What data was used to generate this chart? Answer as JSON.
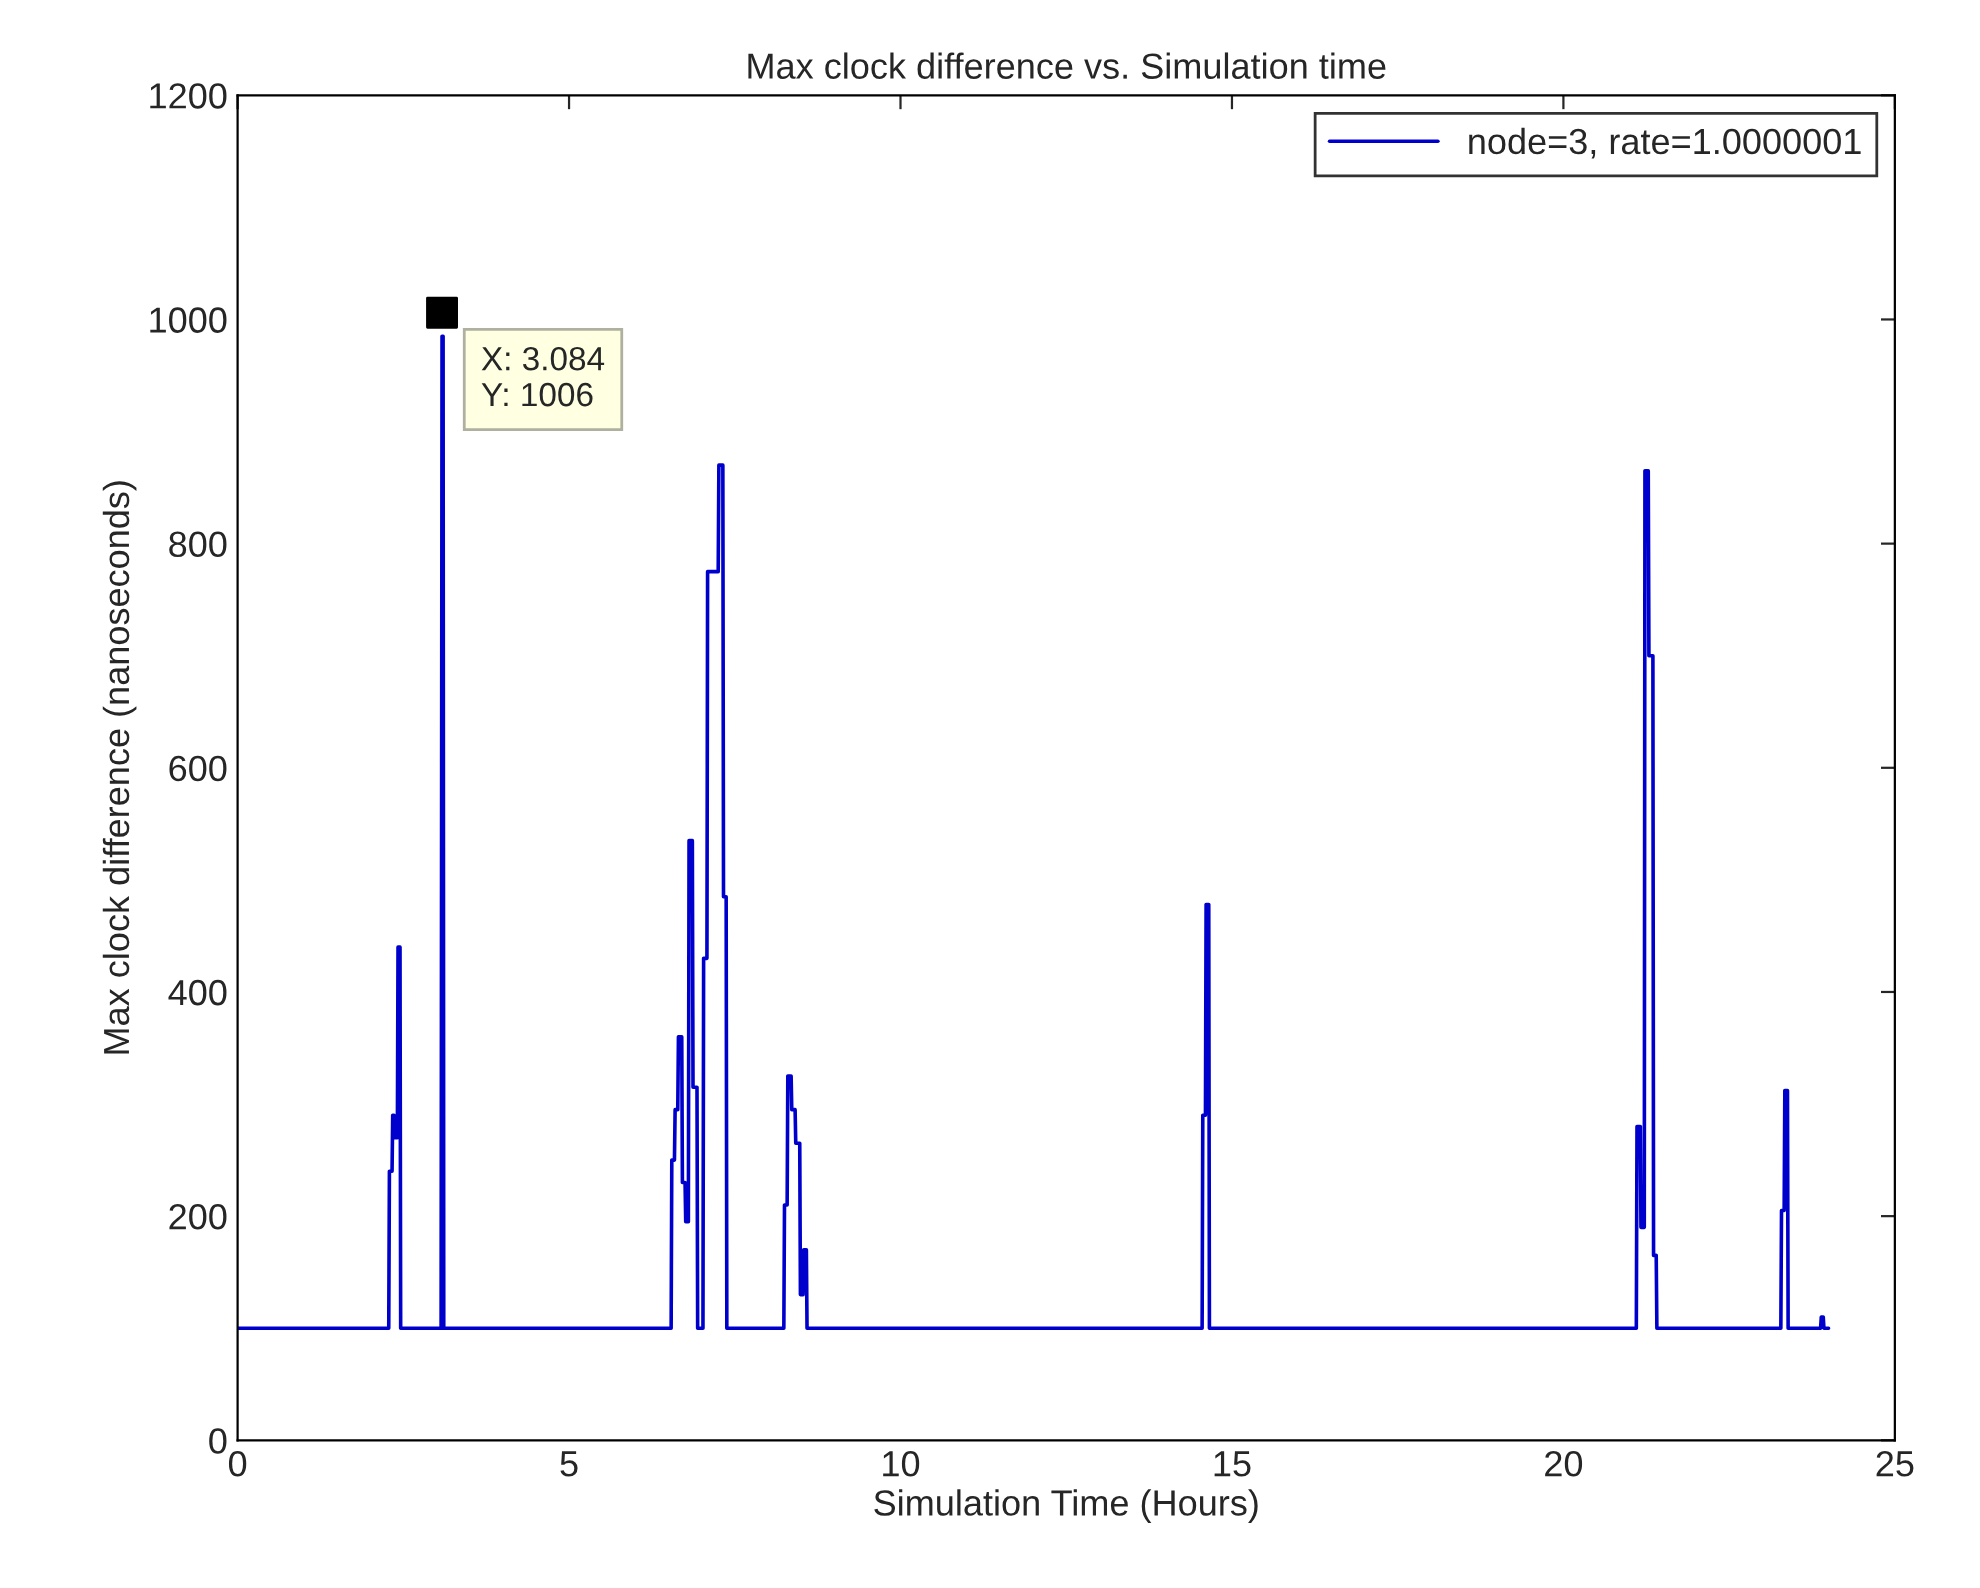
{
  "chart_data": {
    "type": "line",
    "title": "Max clock difference vs. Simulation time",
    "xlabel": "Simulation Time (Hours)",
    "ylabel": "Max clock difference (nanoseconds)",
    "xlim": [
      0,
      25
    ],
    "ylim": [
      0,
      1200
    ],
    "xticks": [
      0,
      5,
      10,
      15,
      20,
      25
    ],
    "yticks": [
      0,
      200,
      400,
      600,
      800,
      1000,
      1200
    ],
    "grid": false,
    "legend": "top right",
    "marker": "none",
    "line_style": "solid",
    "series": [
      {
        "name": "node=3, rate=1.0000001",
        "color": "#0000cc",
        "x": [
          0,
          2.28,
          2.29,
          2.33,
          2.34,
          2.36,
          2.37,
          2.41,
          2.42,
          2.45,
          2.46,
          3.07,
          3.084,
          3.1,
          3.11,
          6.54,
          6.55,
          6.59,
          6.6,
          6.64,
          6.65,
          6.7,
          6.71,
          6.75,
          6.76,
          6.8,
          6.81,
          6.86,
          6.87,
          6.93,
          6.94,
          7.02,
          7.03,
          7.08,
          7.09,
          7.25,
          7.26,
          7.32,
          7.33,
          7.37,
          7.38,
          8.24,
          8.25,
          8.29,
          8.3,
          8.35,
          8.36,
          8.41,
          8.42,
          8.48,
          8.49,
          8.53,
          8.54,
          8.58,
          8.59,
          14.55,
          14.56,
          14.6,
          14.61,
          14.65,
          14.66,
          21.1,
          21.11,
          21.16,
          21.17,
          21.22,
          21.23,
          21.28,
          21.29,
          21.35,
          21.36,
          21.4,
          21.41,
          23.28,
          23.29,
          23.33,
          23.34,
          23.38,
          23.39,
          23.88,
          23.89,
          23.92,
          23.93,
          24
        ],
        "values": [
          100,
          100,
          240,
          240,
          290,
          290,
          270,
          270,
          440,
          440,
          100,
          100,
          985,
          985,
          100,
          100,
          250,
          250,
          295,
          295,
          360,
          360,
          230,
          230,
          195,
          195,
          535,
          535,
          315,
          315,
          100,
          100,
          430,
          430,
          775,
          775,
          870,
          870,
          485,
          485,
          100,
          100,
          210,
          210,
          325,
          325,
          295,
          295,
          265,
          265,
          130,
          130,
          170,
          170,
          100,
          100,
          290,
          290,
          478,
          478,
          100,
          100,
          280,
          280,
          190,
          190,
          865,
          865,
          700,
          700,
          165,
          165,
          100,
          100,
          205,
          205,
          312,
          312,
          100,
          100,
          110,
          110,
          100,
          100
        ]
      },
      {
        "type": "scatter",
        "color": "#000000",
        "marker": "square",
        "x": [
          3.084
        ],
        "values": [
          1006
        ]
      }
    ],
    "annotations": [
      {
        "text": "X: 3.084\nY: 1006",
        "x": 3.084,
        "y": 1006
      }
    ]
  }
}
